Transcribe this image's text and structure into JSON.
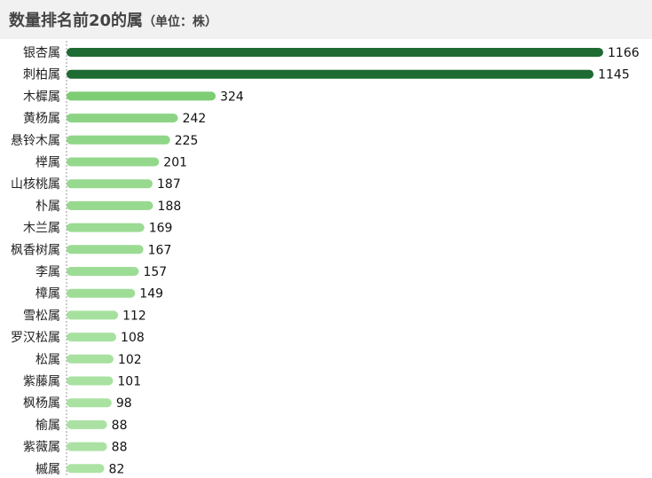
{
  "title": {
    "main": "数量排名前20的属",
    "sub": "（单位：株）"
  },
  "chart_data": {
    "type": "bar",
    "orientation": "horizontal",
    "categories": [
      "银杏属",
      "刺柏属",
      "木樨属",
      "黄杨属",
      "悬铃木属",
      "榉属",
      "山核桃属",
      "朴属",
      "木兰属",
      "枫香树属",
      "李属",
      "樟属",
      "雪松属",
      "罗汉松属",
      "松属",
      "紫藤属",
      "枫杨属",
      "榆属",
      "紫薇属",
      "槭属"
    ],
    "values": [
      1166,
      1145,
      324,
      242,
      225,
      201,
      187,
      188,
      169,
      167,
      157,
      149,
      112,
      108,
      102,
      101,
      98,
      88,
      88,
      82
    ],
    "xlim": [
      0,
      1166
    ],
    "grid": false,
    "legend": "none",
    "colors": {
      "high": "#1e6b33",
      "low_light": "#ace3a4",
      "low_dark": "#7ccd74"
    }
  }
}
